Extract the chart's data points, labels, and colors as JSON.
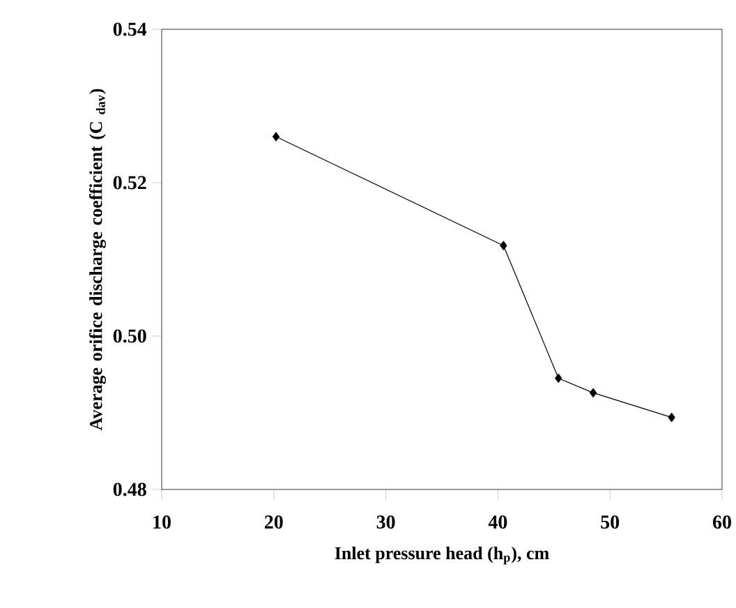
{
  "chart_data": {
    "type": "line",
    "xlabel": "Inlet pressure head (h$_{p}$), cm",
    "ylabel": "Average orifice discharge coefficient (C $_{dav}$)",
    "x": [
      20.2,
      40.5,
      45.4,
      48.5,
      55.5
    ],
    "values": [
      0.526,
      0.5118,
      0.4945,
      0.4926,
      0.4894
    ],
    "color": "#000000",
    "marker": "diamond",
    "line_style": "solid",
    "xlim": [
      10,
      60
    ],
    "xticks": [
      10,
      20,
      30,
      40,
      50,
      60
    ],
    "ylim": [
      0.48,
      0.54
    ],
    "yticks": [
      {
        "value": 0.48,
        "label": "0.48"
      },
      {
        "value": 0.5,
        "label": "0.50"
      },
      {
        "value": 0.52,
        "label": "0.52"
      },
      {
        "value": 0.54,
        "label": "0.54"
      }
    ]
  }
}
